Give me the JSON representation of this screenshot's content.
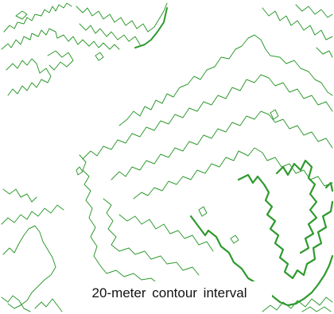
{
  "caption": "20-meter contour interval",
  "contour_color": "#2e9a2e",
  "background_color": "#ffffff"
}
